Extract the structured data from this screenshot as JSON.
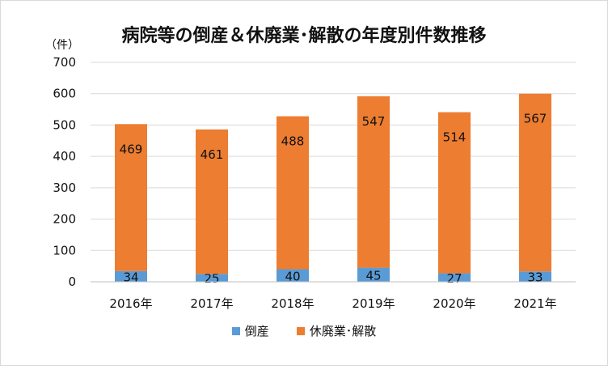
{
  "chart_data": {
    "type": "bar",
    "stacked": true,
    "title": "病院等の倒産＆休廃業･解散の年度別件数推移",
    "unit_label": "（件）",
    "categories": [
      "2016年",
      "2017年",
      "2018年",
      "2019年",
      "2020年",
      "2021年"
    ],
    "series": [
      {
        "name": "倒産",
        "color": "#5B9BD5",
        "values": [
          34,
          25,
          40,
          45,
          27,
          33
        ]
      },
      {
        "name": "休廃業･解散",
        "color": "#ED7D31",
        "values": [
          469,
          461,
          488,
          547,
          514,
          567
        ]
      }
    ],
    "ylim": [
      0,
      700
    ],
    "yticks": [
      0,
      100,
      200,
      300,
      400,
      500,
      600,
      700
    ],
    "grid": true,
    "legend_position": "bottom"
  }
}
